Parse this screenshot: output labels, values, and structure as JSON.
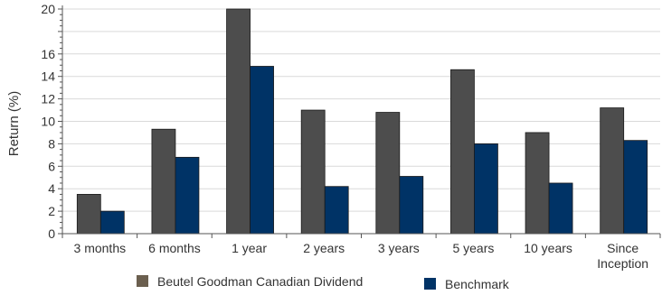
{
  "chart_data": {
    "type": "bar",
    "title": "",
    "xlabel": "",
    "ylabel": "Return (%)",
    "ylim": [
      0,
      20
    ],
    "yticks": [
      0,
      2,
      4,
      6,
      8,
      10,
      12,
      14,
      16,
      20
    ],
    "grid": true,
    "legend_position": "bottom",
    "categories": [
      "3 months",
      "6 months",
      "1 year",
      "2 years",
      "3 years",
      "5 years",
      "10 years",
      "Since Inception"
    ],
    "series": [
      {
        "name": "Beutel Goodman Canadian Dividend",
        "color": "#4d4d4d",
        "legend_color": "#6b5f4f",
        "values": [
          3.5,
          9.3,
          20.0,
          11.0,
          10.8,
          14.6,
          9.0,
          11.2
        ]
      },
      {
        "name": "Benchmark",
        "color": "#003366",
        "legend_color": "#003366",
        "values": [
          2.0,
          6.8,
          14.9,
          4.2,
          5.1,
          8.0,
          4.5,
          8.3
        ]
      }
    ]
  }
}
